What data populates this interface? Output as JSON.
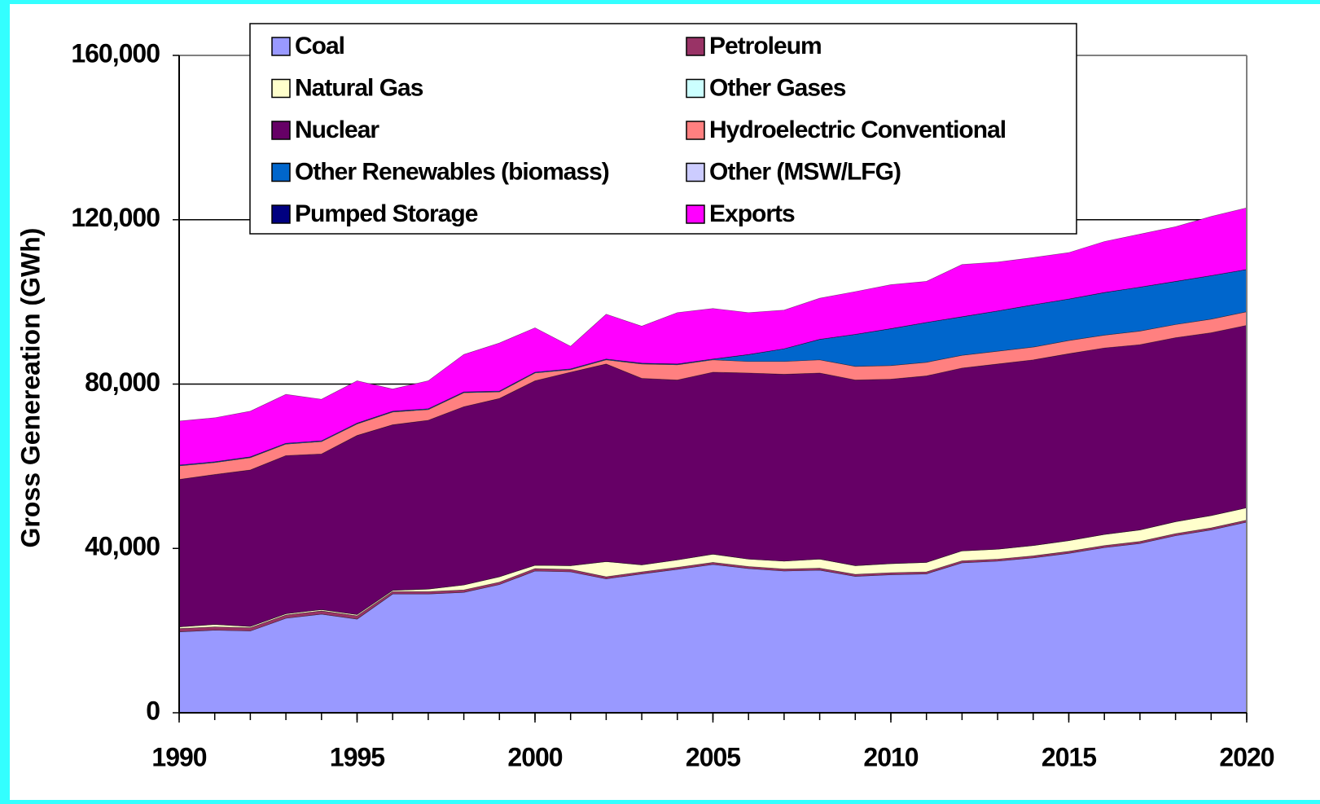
{
  "chart_data": {
    "type": "stacked_area",
    "y_label": "Gross Genereation (GWh)",
    "x": [
      1990,
      1991,
      1992,
      1993,
      1994,
      1995,
      1996,
      1997,
      1998,
      1999,
      2000,
      2001,
      2002,
      2003,
      2004,
      2005,
      2006,
      2007,
      2008,
      2009,
      2010,
      2011,
      2012,
      2013,
      2014,
      2015,
      2016,
      2017,
      2018,
      2019,
      2020
    ],
    "xlim": [
      1990,
      2020
    ],
    "xticks": [
      1990,
      1995,
      2000,
      2005,
      2010,
      2015,
      2020
    ],
    "ylim": [
      0,
      160000
    ],
    "yticks": [
      0,
      {
        "value": 40000,
        "label": "40,000"
      },
      {
        "value": 80000,
        "label": "80,000"
      },
      {
        "value": 120000,
        "label": "120,000"
      },
      {
        "value": 160000,
        "label": "160,000"
      }
    ],
    "grid": true,
    "legend": "top",
    "series": [
      {
        "name": "Coal",
        "color": "#9999ff",
        "values": [
          19700,
          20100,
          19900,
          23000,
          24000,
          22800,
          28900,
          28900,
          29300,
          31200,
          34500,
          34300,
          32600,
          33800,
          34900,
          36100,
          35100,
          34500,
          34700,
          33200,
          33600,
          33800,
          36500,
          36900,
          37700,
          38800,
          40200,
          41200,
          43100,
          44500,
          46400
        ]
      },
      {
        "name": "Petroleum",
        "color": "#993366",
        "values": [
          800,
          800,
          800,
          800,
          800,
          800,
          600,
          600,
          600,
          600,
          600,
          600,
          500,
          500,
          500,
          500,
          500,
          500,
          500,
          500,
          500,
          500,
          500,
          500,
          500,
          500,
          500,
          500,
          500,
          500,
          500
        ]
      },
      {
        "name": "Natural Gas",
        "color": "#ffffcc",
        "values": [
          400,
          600,
          300,
          300,
          300,
          300,
          300,
          600,
          1200,
          1300,
          800,
          900,
          3700,
          1700,
          1800,
          2000,
          1800,
          1900,
          2200,
          2100,
          2200,
          2300,
          2400,
          2400,
          2500,
          2600,
          2700,
          2800,
          2900,
          3000,
          3000
        ]
      },
      {
        "name": "Other Gases",
        "color": "#ccffff",
        "values": [
          0,
          0,
          0,
          0,
          0,
          0,
          0,
          0,
          0,
          0,
          0,
          0,
          0,
          0,
          0,
          0,
          0,
          0,
          0,
          0,
          0,
          0,
          0,
          0,
          0,
          0,
          0,
          0,
          0,
          0,
          0
        ]
      },
      {
        "name": "Nuclear",
        "color": "#660066",
        "values": [
          35900,
          36500,
          38100,
          38500,
          37900,
          43600,
          40300,
          41100,
          43400,
          43400,
          44900,
          47100,
          48100,
          45400,
          43800,
          44300,
          45300,
          45500,
          45300,
          45200,
          44900,
          45400,
          44500,
          45100,
          45200,
          45500,
          45400,
          45100,
          44800,
          44500,
          44400
        ]
      },
      {
        "name": "Hydroelectric Conventional",
        "color": "#ff8080",
        "values": [
          3300,
          2900,
          3000,
          2800,
          3000,
          2800,
          3100,
          2600,
          3400,
          1600,
          1900,
          600,
          1000,
          3500,
          3700,
          3000,
          2800,
          3100,
          3200,
          3300,
          3300,
          3300,
          3100,
          3100,
          3100,
          3200,
          3100,
          3300,
          3200,
          3300,
          3300
        ]
      },
      {
        "name": "Other Renewables (biomass)",
        "color": "#0066cc",
        "values": [
          200,
          200,
          200,
          200,
          200,
          200,
          200,
          200,
          200,
          200,
          200,
          200,
          200,
          200,
          200,
          200,
          1700,
          3100,
          5000,
          7800,
          9000,
          9700,
          9400,
          9800,
          10300,
          10100,
          10400,
          10700,
          10500,
          10600,
          10300
        ]
      },
      {
        "name": "Other (MSW/LFG)",
        "color": "#ccccff",
        "values": [
          0,
          0,
          0,
          0,
          0,
          0,
          0,
          0,
          0,
          0,
          0,
          0,
          0,
          0,
          0,
          0,
          0,
          0,
          0,
          0,
          0,
          0,
          0,
          0,
          0,
          0,
          0,
          0,
          0,
          0,
          0
        ]
      },
      {
        "name": "Pumped Storage",
        "color": "#000080",
        "values": [
          0,
          0,
          0,
          0,
          0,
          0,
          0,
          0,
          0,
          0,
          0,
          0,
          0,
          0,
          0,
          0,
          0,
          0,
          0,
          0,
          0,
          0,
          0,
          0,
          0,
          0,
          0,
          0,
          0,
          0,
          0
        ]
      },
      {
        "name": "Exports",
        "color": "#ff00ff",
        "values": [
          10700,
          10700,
          11100,
          11900,
          10100,
          10300,
          5400,
          6800,
          9100,
          11700,
          10800,
          5500,
          10900,
          9000,
          12500,
          12300,
          10200,
          9400,
          10000,
          10400,
          10700,
          10000,
          12700,
          11900,
          11500,
          11300,
          12400,
          12900,
          13300,
          14400,
          15000
        ]
      }
    ]
  }
}
